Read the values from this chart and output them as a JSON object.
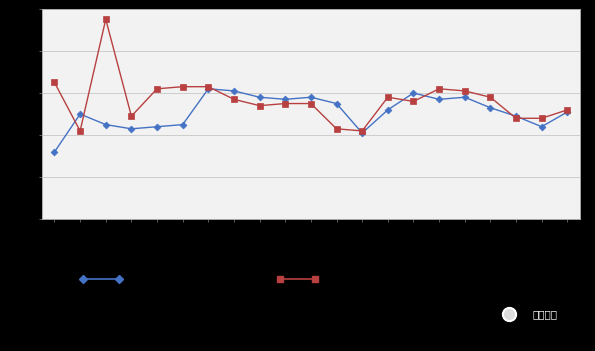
{
  "blue_y": [
    3.2,
    5.0,
    4.5,
    4.3,
    4.4,
    4.5,
    6.2,
    6.1,
    5.8,
    5.7,
    5.8,
    5.5,
    4.1,
    5.2,
    6.0,
    5.7,
    5.8,
    5.3,
    4.9,
    4.4,
    5.1
  ],
  "red_y": [
    6.5,
    4.2,
    9.5,
    4.9,
    6.2,
    6.3,
    6.3,
    5.7,
    5.4,
    5.5,
    5.5,
    4.3,
    4.2,
    5.8,
    5.6,
    6.2,
    6.1,
    5.8,
    4.8,
    4.8,
    5.2
  ],
  "blue_color": "#4472C4",
  "red_color": "#B84040",
  "chart_bg": "#f2f2f2",
  "outer_bg": "#000000",
  "ylim": [
    0,
    10
  ],
  "ytick_count": 6,
  "grid_color": "#c8c8c8",
  "n_points": 21
}
